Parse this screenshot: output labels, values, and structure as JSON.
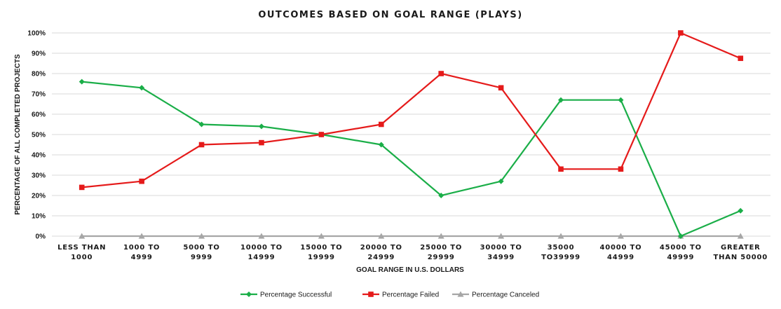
{
  "chart_data": {
    "type": "line",
    "title": "OUTCOMES BASED ON GOAL RANGE (PLAYS)",
    "xlabel": "GOAL RANGE IN U.S. DOLLARS",
    "ylabel": "PERCENTAGE OF ALL COMPLETED PROJECTS",
    "ylim": [
      0,
      100
    ],
    "y_ticks": [
      "0%",
      "10%",
      "20%",
      "30%",
      "40%",
      "50%",
      "60%",
      "70%",
      "80%",
      "90%",
      "100%"
    ],
    "categories": [
      [
        "LESS THAN",
        "1000"
      ],
      [
        "1000 TO",
        "4999"
      ],
      [
        "5000 TO",
        "9999"
      ],
      [
        "10000 TO",
        "14999"
      ],
      [
        "15000 TO",
        "19999"
      ],
      [
        "20000 TO",
        "24999"
      ],
      [
        "25000 TO",
        "29999"
      ],
      [
        "30000 TO",
        "34999"
      ],
      [
        "35000",
        "TO39999"
      ],
      [
        "40000 TO",
        "44999"
      ],
      [
        "45000 TO",
        "49999"
      ],
      [
        "GREATER",
        "THAN 50000"
      ]
    ],
    "series": [
      {
        "name": "Percentage Successful",
        "color": "#1aae48",
        "marker": "diamond",
        "values": [
          76,
          73,
          55,
          54,
          50,
          45,
          20,
          27,
          67,
          67,
          0,
          12.5
        ]
      },
      {
        "name": "Percentage Failed",
        "color": "#e51a1a",
        "marker": "square",
        "values": [
          24,
          27,
          45,
          46,
          50,
          55,
          80,
          73,
          33,
          33,
          100,
          87.5
        ]
      },
      {
        "name": "Percentage Canceled",
        "color": "#a6a6a6",
        "marker": "triangle",
        "values": [
          0,
          0,
          0,
          0,
          0,
          0,
          0,
          0,
          0,
          0,
          0,
          0
        ]
      }
    ],
    "grid": true,
    "legend_position": "bottom"
  }
}
